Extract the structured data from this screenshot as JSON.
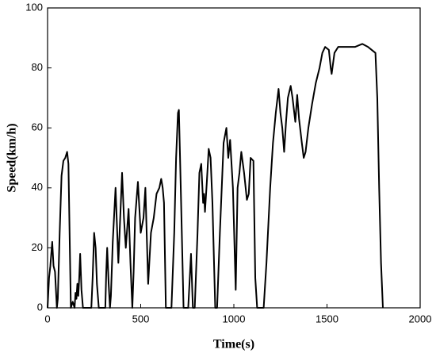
{
  "chart_data": {
    "type": "line",
    "x_label": "Time(s)",
    "y_label": "Speed(km/h)",
    "color": "#000000",
    "xlim": [
      0,
      2000
    ],
    "xticks": [
      0,
      500,
      1000,
      1500,
      2000
    ],
    "ylim": [
      0,
      100
    ],
    "yticks": [
      0,
      20,
      40,
      60,
      80,
      100
    ],
    "x": [
      0,
      8,
      15,
      25,
      32,
      40,
      50,
      55,
      65,
      75,
      85,
      95,
      105,
      112,
      125,
      135,
      145,
      150,
      155,
      160,
      165,
      170,
      175,
      182,
      190,
      235,
      242,
      250,
      258,
      265,
      275,
      310,
      315,
      320,
      328,
      335,
      340,
      350,
      365,
      380,
      390,
      400,
      410,
      420,
      435,
      445,
      455,
      462,
      470,
      485,
      500,
      515,
      525,
      540,
      555,
      570,
      585,
      600,
      610,
      618,
      625,
      635,
      665,
      680,
      690,
      700,
      705,
      715,
      730,
      755,
      765,
      770,
      780,
      790,
      805,
      815,
      825,
      835,
      840,
      845,
      855,
      865,
      875,
      885,
      900,
      910,
      925,
      945,
      960,
      970,
      980,
      995,
      1010,
      1020,
      1030,
      1040,
      1055,
      1070,
      1080,
      1090,
      1105,
      1115,
      1125,
      1160,
      1175,
      1195,
      1210,
      1225,
      1240,
      1250,
      1260,
      1270,
      1280,
      1290,
      1305,
      1315,
      1330,
      1340,
      1350,
      1365,
      1375,
      1385,
      1400,
      1420,
      1440,
      1460,
      1475,
      1490,
      1510,
      1520,
      1525,
      1540,
      1560,
      1600,
      1650,
      1690,
      1720,
      1740,
      1760,
      1770,
      1780,
      1790,
      1800
    ],
    "values": [
      0,
      10,
      14,
      22,
      14,
      12,
      0,
      3,
      25,
      44,
      49,
      50,
      52,
      48,
      0,
      2,
      0,
      5,
      3,
      8,
      4,
      10,
      18,
      6,
      0,
      0,
      10,
      25,
      20,
      8,
      0,
      0,
      12,
      20,
      8,
      0,
      4,
      22,
      40,
      15,
      30,
      45,
      30,
      20,
      33,
      15,
      0,
      12,
      30,
      42,
      25,
      30,
      40,
      8,
      25,
      30,
      38,
      40,
      43,
      40,
      35,
      0,
      0,
      25,
      50,
      65,
      66,
      40,
      0,
      0,
      12,
      18,
      0,
      0,
      25,
      45,
      48,
      35,
      38,
      32,
      42,
      53,
      50,
      35,
      0,
      0,
      25,
      55,
      60,
      50,
      56,
      40,
      6,
      40,
      45,
      52,
      45,
      36,
      38,
      50,
      49,
      10,
      0,
      0,
      15,
      40,
      55,
      65,
      73,
      65,
      60,
      52,
      62,
      70,
      74,
      70,
      62,
      71,
      63,
      55,
      50,
      52,
      60,
      68,
      75,
      80,
      85,
      87,
      86,
      80,
      78,
      85,
      87,
      87,
      87,
      88,
      87,
      86,
      85,
      70,
      40,
      15,
      0
    ]
  }
}
